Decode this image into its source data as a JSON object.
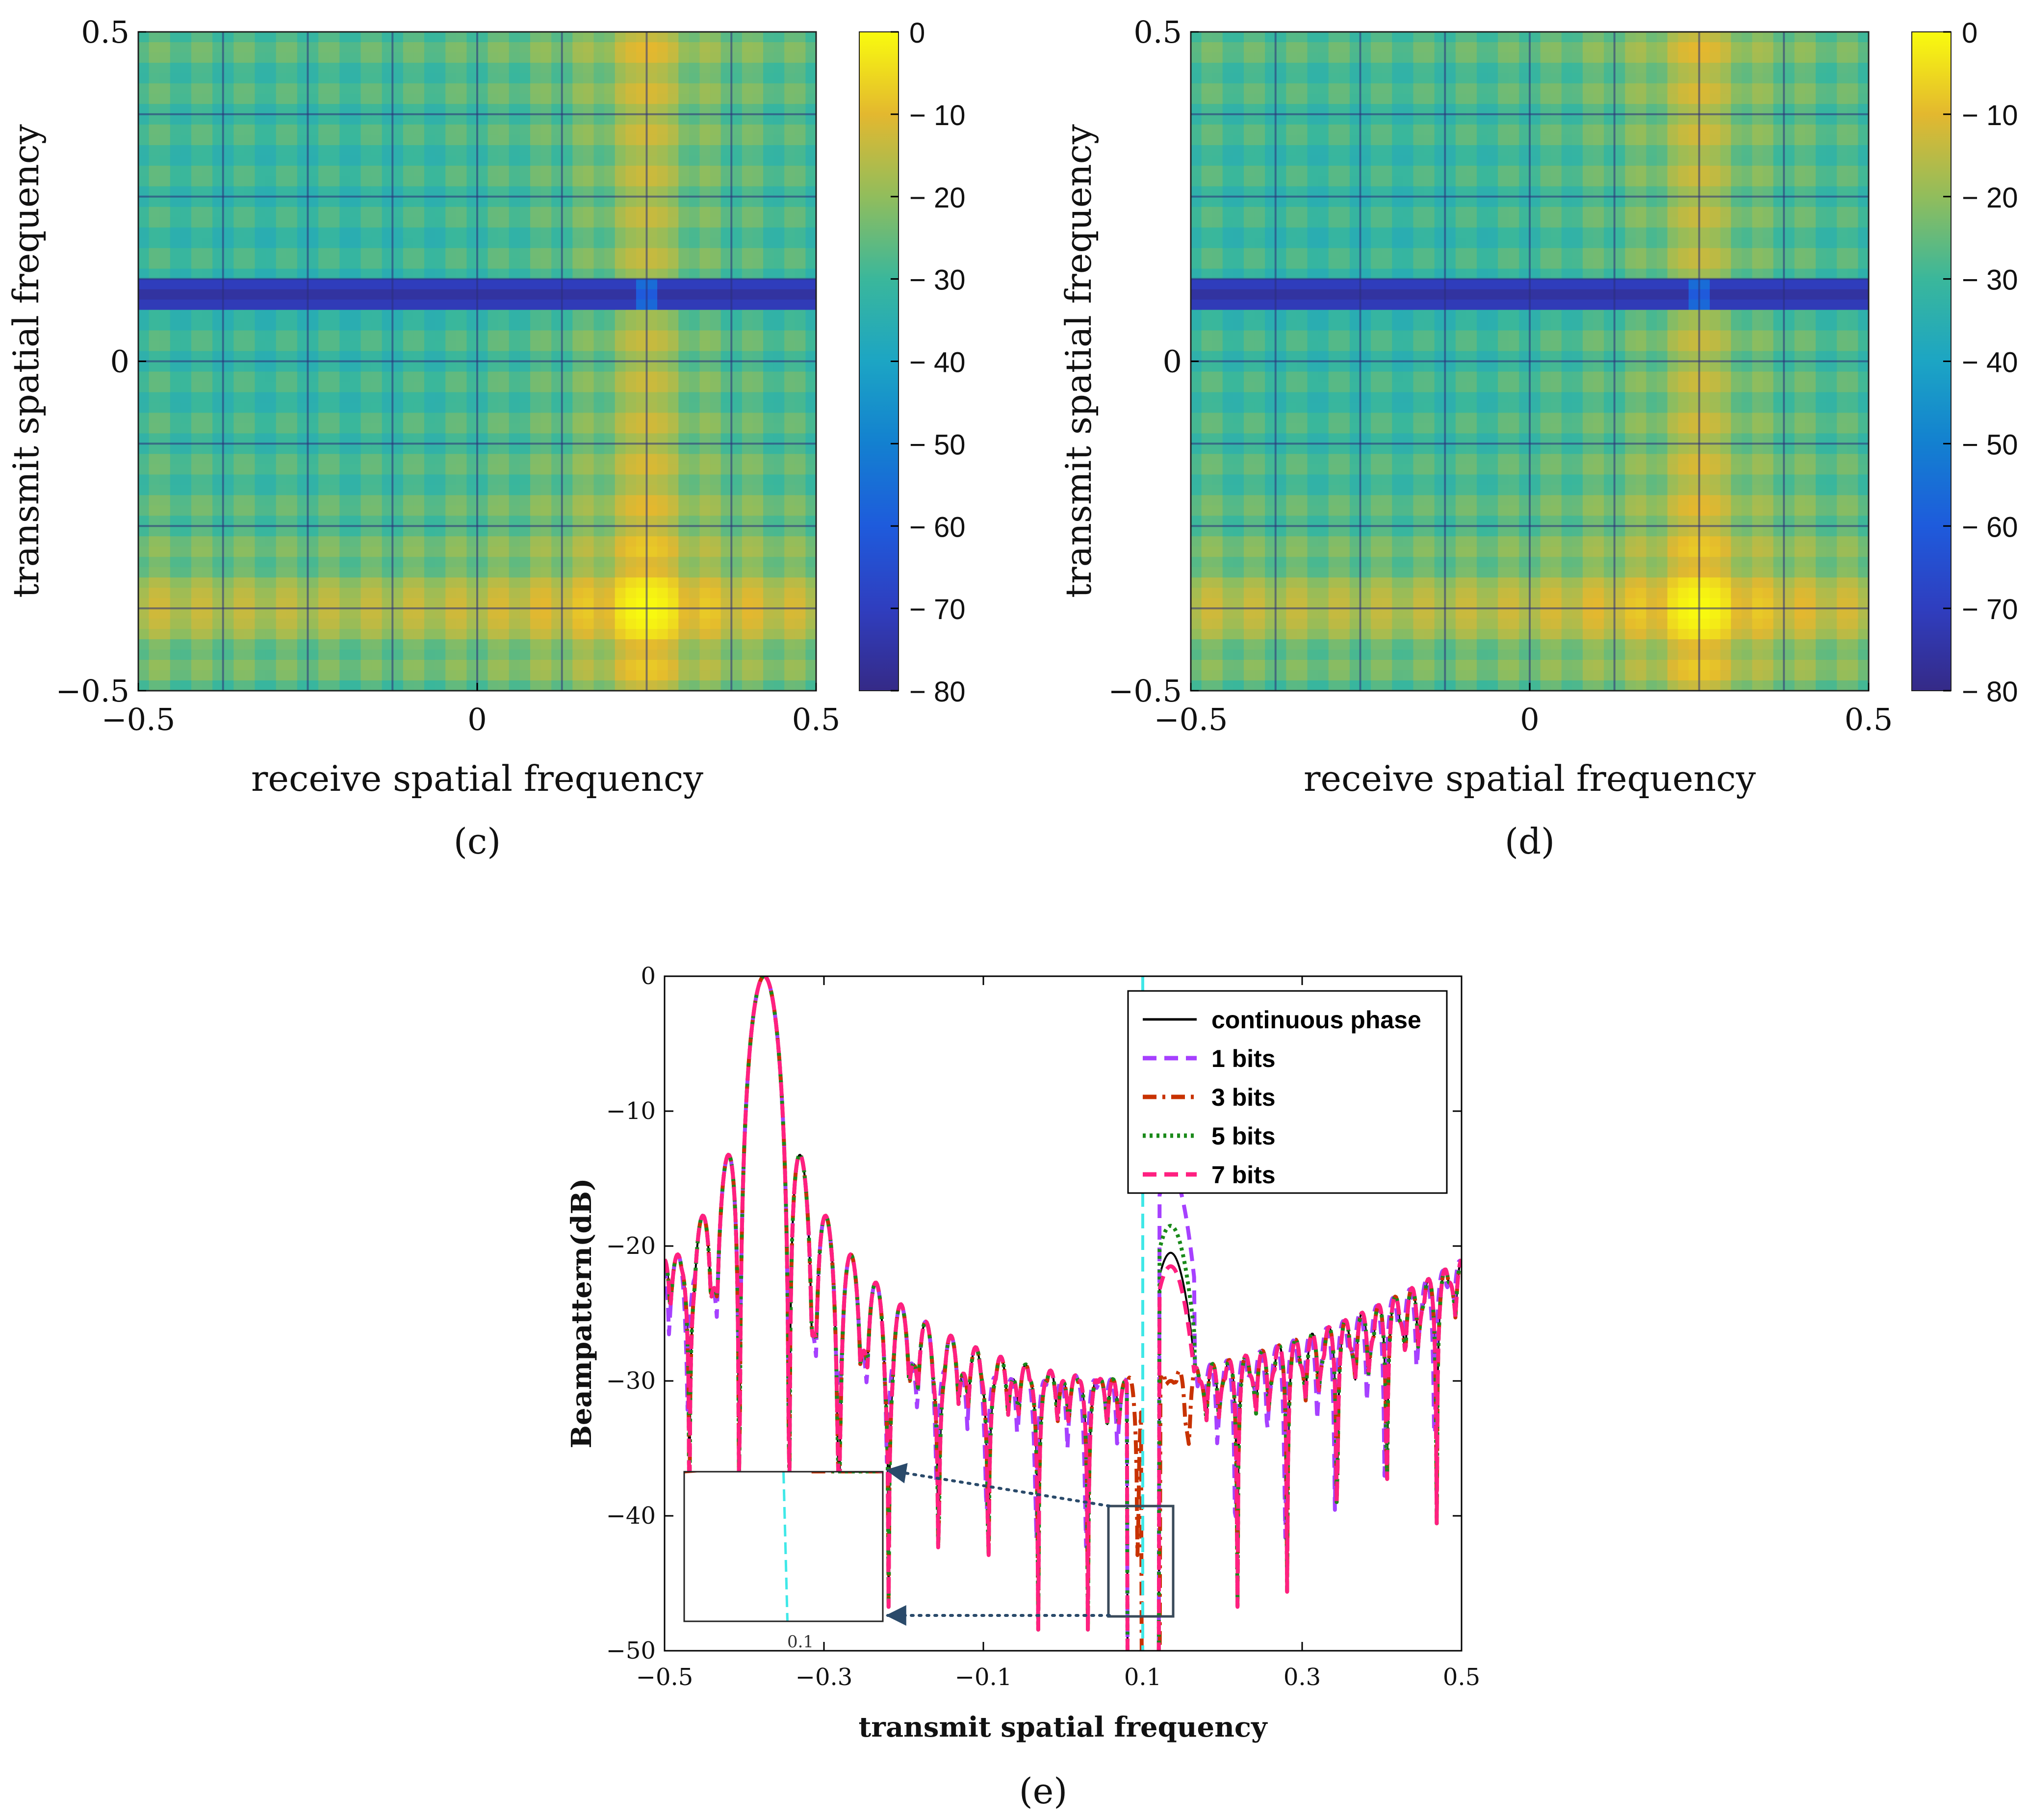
{
  "colors": {
    "cont": "#000000",
    "b1": "#a640ff",
    "b3": "#c83200",
    "b5": "#1a8a1a",
    "b7": "#ff2080",
    "cyan": "#40e8e8",
    "arrow": "#2a4a6a",
    "axis": "#000000",
    "box": "#3a4a5a"
  },
  "chart_data": [
    {
      "panel": "c",
      "type": "heatmap",
      "caption": "(c)",
      "xlabel": "receive spatial frequency",
      "ylabel": "transmit spatial frequency",
      "xlim": [
        -0.5,
        0.5
      ],
      "ylim": [
        -0.5,
        0.5
      ],
      "xticks": [
        "−0.5",
        "0",
        "0.5"
      ],
      "yticks": [
        "0.5",
        "0",
        "−0.5"
      ],
      "colorbar": {
        "range": [
          -80,
          0
        ],
        "ticks": [
          "0",
          "− 10",
          "− 20",
          "− 30",
          "− 40",
          "− 50",
          "− 60",
          "− 70",
          "− 80"
        ]
      },
      "peak": {
        "receive": 0.25,
        "transmit": -0.375,
        "value_db": 0
      },
      "null_band_transmit": 0.1,
      "main_ridges": {
        "receive": 0.25,
        "transmit": -0.375
      }
    },
    {
      "panel": "d",
      "type": "heatmap",
      "caption": "(d)",
      "xlabel": "receive spatial frequency",
      "ylabel": "transmit spatial frequency",
      "xlim": [
        -0.5,
        0.5
      ],
      "ylim": [
        -0.5,
        0.5
      ],
      "xticks": [
        "−0.5",
        "0",
        "0.5"
      ],
      "yticks": [
        "0.5",
        "0",
        "−0.5"
      ],
      "colorbar": {
        "range": [
          -80,
          0
        ],
        "ticks": [
          "0",
          "− 10",
          "− 20",
          "− 30",
          "− 40",
          "− 50",
          "− 60",
          "− 70",
          "− 80"
        ]
      },
      "peak": {
        "receive": 0.25,
        "transmit": -0.375,
        "value_db": 0
      },
      "null_band_transmit": 0.1,
      "main_ridges": {
        "receive": 0.25,
        "transmit": -0.375
      }
    },
    {
      "panel": "e",
      "type": "line",
      "caption": "(e)",
      "xlabel": "transmit spatial frequency",
      "ylabel": "Beampattern(dB)",
      "xlim": [
        -0.5,
        0.5
      ],
      "ylim": [
        -50,
        0
      ],
      "xticks": [
        "−0.5",
        "−0.3",
        "−0.1",
        "0.1",
        "0.3",
        "0.5"
      ],
      "yticks": [
        "0",
        "−10",
        "−20",
        "−30",
        "−40",
        "−50"
      ],
      "mainlobe": {
        "x": -0.375,
        "db": 0
      },
      "null_region_x": [
        0.07,
        0.13
      ],
      "legend": [
        {
          "name": "continuous phase",
          "style": "solid",
          "color_key": "cont"
        },
        {
          "name": "1 bits",
          "style": "dashed",
          "color_key": "b1"
        },
        {
          "name": "3 bits",
          "style": "dashdot",
          "color_key": "b3"
        },
        {
          "name": "5 bits",
          "style": "dotted",
          "color_key": "b5"
        },
        {
          "name": "7 bits",
          "style": "dashed",
          "color_key": "b7"
        }
      ],
      "secondary_lobe_peaks_db": {
        "continuous phase": -20.5,
        "1 bits": -14.5,
        "3 bits": -30,
        "5 bits": -18.5,
        "7 bits": -21.5
      },
      "inset": {
        "xlim": [
          0.07,
          0.13
        ],
        "xtick": "0.1"
      }
    }
  ]
}
